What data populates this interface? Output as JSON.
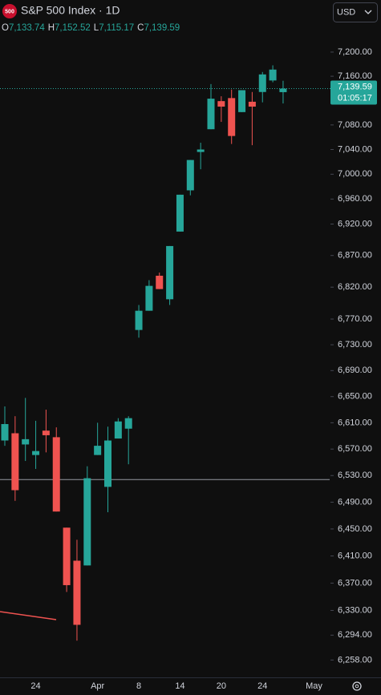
{
  "header": {
    "badge": "500",
    "title": "S&P 500 Index · 1D",
    "currency": "USD",
    "ohlc": [
      {
        "label": "O",
        "value": "7,133.74"
      },
      {
        "label": "H",
        "value": "7,152.52"
      },
      {
        "label": "L",
        "value": "7,115.17"
      },
      {
        "label": "C",
        "value": "7,139.59"
      }
    ]
  },
  "price_tag": {
    "price": "7,139.59",
    "countdown": "01:05:17"
  },
  "chart_data": {
    "type": "candlestick",
    "log_scale": true,
    "up_color": "#26a69a",
    "down_color": "#ef5350",
    "categories": [
      null,
      null,
      null,
      "24",
      null,
      null,
      null,
      null,
      null,
      "Apr",
      null,
      null,
      null,
      "8",
      null,
      null,
      null,
      "14",
      null,
      null,
      null,
      "20",
      null,
      null,
      null,
      "24",
      null,
      null,
      null,
      null,
      "May"
    ],
    "open": [
      6583,
      6594,
      6577,
      6561,
      6598,
      6588,
      6452,
      6403,
      6396,
      6561,
      6513,
      6586,
      6601,
      6753,
      6783,
      6838,
      6801,
      6908,
      6974,
      7036,
      7073,
      7119,
      7124,
      7101,
      7118,
      7134,
      7153,
      7133.74,
      null,
      null,
      null
    ],
    "high": [
      6635,
      6620,
      6648,
      6613,
      6630,
      6603,
      6452,
      6434,
      6544,
      6610,
      6604,
      6617,
      6620,
      6792,
      6831,
      6843,
      6885,
      6967,
      7023,
      7051,
      7147,
      7127,
      7138,
      7137,
      7134,
      7167,
      7178,
      7152.52,
      null,
      null,
      null
    ],
    "low": [
      6575,
      6492,
      6552,
      6540,
      6565,
      6476,
      6357,
      6286,
      6396,
      6561,
      6475,
      6586,
      6547,
      6741,
      6783,
      6817,
      6792,
      6908,
      6966,
      7008,
      7073,
      7085,
      7049,
      7101,
      7047,
      7117,
      7150,
      7115.17,
      null,
      null,
      null
    ],
    "close": [
      6608,
      6508,
      6585,
      6567,
      6591,
      6476,
      6367,
      6309,
      6526,
      6575,
      6583,
      6612,
      6617,
      6783,
      6822,
      6817,
      6885,
      6967,
      7023,
      7040,
      7123,
      7110,
      7062,
      7137,
      7110,
      7163,
      7171,
      7139.59,
      null,
      null,
      null
    ],
    "horizontal_line": 6524,
    "ylim": [
      6233,
      7287
    ],
    "yticks": [
      {
        "value": 7200,
        "label": "7,200.00"
      },
      {
        "value": 7160,
        "label": "7,160.00"
      },
      {
        "value": 7080,
        "label": "7,080.00"
      },
      {
        "value": 7040,
        "label": "7,040.00"
      },
      {
        "value": 7000,
        "label": "7,000.00"
      },
      {
        "value": 6960,
        "label": "6,960.00"
      },
      {
        "value": 6920,
        "label": "6,920.00"
      },
      {
        "value": 6870,
        "label": "6,870.00"
      },
      {
        "value": 6820,
        "label": "6,820.00"
      },
      {
        "value": 6770,
        "label": "6,770.00"
      },
      {
        "value": 6730,
        "label": "6,730.00"
      },
      {
        "value": 6690,
        "label": "6,690.00"
      },
      {
        "value": 6650,
        "label": "6,650.00"
      },
      {
        "value": 6610,
        "label": "6,610.00"
      },
      {
        "value": 6570,
        "label": "6,570.00"
      },
      {
        "value": 6530,
        "label": "6,530.00"
      },
      {
        "value": 6490,
        "label": "6,490.00"
      },
      {
        "value": 6450,
        "label": "6,450.00"
      },
      {
        "value": 6410,
        "label": "6,410.00"
      },
      {
        "value": 6370,
        "label": "6,370.00"
      },
      {
        "value": 6330,
        "label": "6,330.00"
      },
      {
        "value": 6294,
        "label": "6,294.00"
      },
      {
        "value": 6258,
        "label": "6,258.00"
      }
    ]
  }
}
